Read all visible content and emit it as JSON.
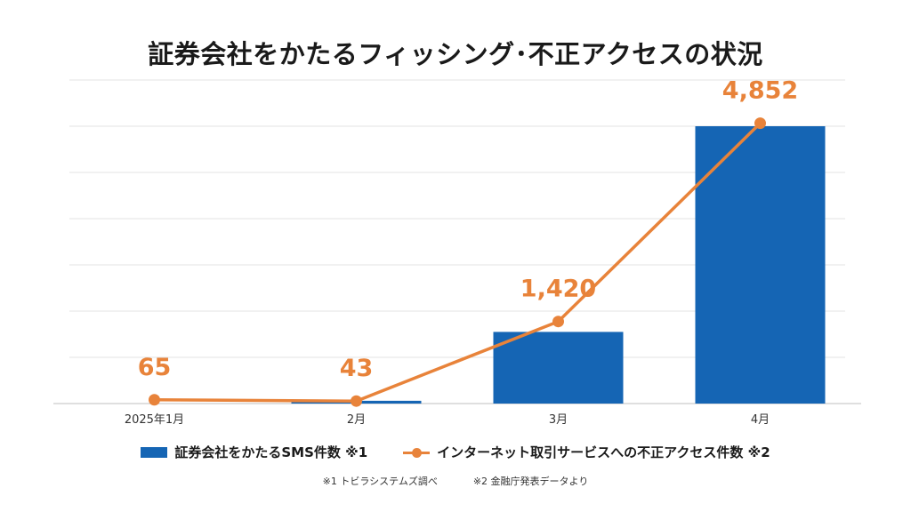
{
  "title": "証券会社をかたるフィッシング･不正アクセスの状況",
  "chart_data": {
    "type": "bar+line",
    "categories": [
      "2025年1月",
      "2月",
      "3月",
      "4月"
    ],
    "series": [
      {
        "name": "証券会社をかたるSMS件数 ※1",
        "kind": "bar",
        "color": "#1565b4",
        "values": [
          0,
          60,
          1550,
          6000
        ]
      },
      {
        "name": "インターネット取引サービスへの不正アクセス件数 ※2",
        "kind": "line",
        "color": "#e8833a",
        "values": [
          65,
          43,
          1420,
          4852
        ],
        "labels": [
          "65",
          "43",
          "1,420",
          "4,852"
        ]
      }
    ],
    "bar_ylim": [
      0,
      7000
    ],
    "line_ylim": [
      0,
      5600
    ],
    "grid": true,
    "legend_position": "bottom"
  },
  "legend": {
    "bar_label": "証券会社をかたるSMS件数 ※1",
    "line_label": "インターネット取引サービスへの不正アクセス件数 ※2"
  },
  "notes": {
    "note1": "※1 トビラシステムズ調べ",
    "note2": "※2 金融庁発表データより"
  }
}
